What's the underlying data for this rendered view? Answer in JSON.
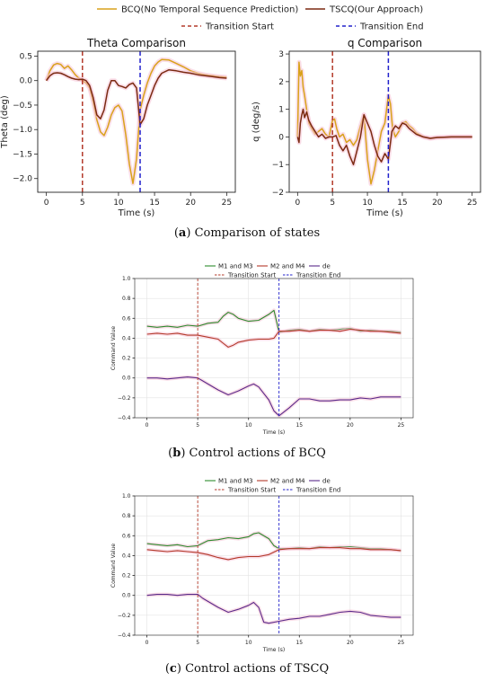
{
  "legend_top": [
    {
      "label": "BCQ(No Temporal Sequence Prediction)",
      "color": "#d9a21b",
      "dash": false
    },
    {
      "label": "TSCQ(Our Approach)",
      "color": "#7b2a12",
      "dash": false
    },
    {
      "label": "Transition Start",
      "color": "#b33a2a",
      "dash": true
    },
    {
      "label": "Transition End",
      "color": "#2222cc",
      "dash": true
    }
  ],
  "captions": {
    "a": {
      "letter": "a",
      "text": "Comparison of states"
    },
    "b": {
      "letter": "b",
      "text": "Control actions of BCQ"
    },
    "c": {
      "letter": "c",
      "text": "Control actions of TSCQ"
    }
  },
  "chart_data": [
    {
      "id": "theta",
      "type": "line",
      "title": "Theta Comparison",
      "xlabel": "Time (s)",
      "ylabel": "Theta (deg)",
      "xlim": [
        -1.2,
        26.2
      ],
      "ylim": [
        -2.28,
        0.6
      ],
      "xticks": [
        0,
        5,
        10,
        15,
        20,
        25
      ],
      "yticks": [
        0.5,
        0.0,
        -0.5,
        -1.0,
        -1.5,
        -2.0
      ],
      "ytick_labels": [
        "0.5",
        "0.0",
        "−0.5",
        "−1.0",
        "−1.5",
        "−2.0"
      ],
      "grid": false,
      "vlines": [
        {
          "x": 5,
          "color": "#b33a2a"
        },
        {
          "x": 13,
          "color": "#2222cc"
        }
      ],
      "series": [
        {
          "name": "BCQ(No Temporal Sequence Prediction)",
          "color": "#d9a21b",
          "x": [
            0,
            0.5,
            1,
            1.5,
            2,
            2.5,
            3,
            3.5,
            4,
            4.5,
            5,
            5.5,
            6,
            6.5,
            7,
            7.5,
            8,
            8.5,
            9,
            9.5,
            10,
            10.5,
            11,
            11.5,
            12,
            12.5,
            13,
            13.5,
            14,
            14.5,
            15,
            15.5,
            16,
            17,
            18,
            19,
            20,
            21,
            22,
            23,
            24,
            25
          ],
          "y": [
            0.0,
            0.2,
            0.32,
            0.35,
            0.33,
            0.25,
            0.3,
            0.22,
            0.12,
            0.05,
            0.0,
            -0.05,
            -0.15,
            -0.45,
            -0.8,
            -1.05,
            -1.12,
            -0.95,
            -0.7,
            -0.55,
            -0.5,
            -0.62,
            -1.1,
            -1.7,
            -2.1,
            -1.6,
            -0.6,
            -0.3,
            -0.05,
            0.15,
            0.3,
            0.38,
            0.43,
            0.42,
            0.35,
            0.28,
            0.2,
            0.15,
            0.12,
            0.1,
            0.08,
            0.07
          ]
        },
        {
          "name": "TSCQ(Our Approach)",
          "color": "#7b2a12",
          "x": [
            0,
            0.5,
            1,
            1.5,
            2,
            2.5,
            3,
            3.5,
            4,
            4.5,
            5,
            5.5,
            6,
            6.5,
            7,
            7.5,
            8,
            8.5,
            9,
            9.5,
            10,
            10.5,
            11,
            11.5,
            12,
            12.5,
            13,
            13.5,
            14,
            14.5,
            15,
            15.5,
            16,
            17,
            18,
            19,
            20,
            21,
            22,
            23,
            24,
            25
          ],
          "y": [
            0.0,
            0.1,
            0.15,
            0.16,
            0.15,
            0.12,
            0.08,
            0.05,
            0.03,
            0.02,
            0.03,
            0.0,
            -0.1,
            -0.35,
            -0.7,
            -0.78,
            -0.6,
            -0.2,
            0.0,
            0.0,
            -0.1,
            -0.12,
            -0.15,
            -0.08,
            -0.05,
            -0.15,
            -0.9,
            -0.78,
            -0.5,
            -0.3,
            -0.1,
            0.05,
            0.15,
            0.22,
            0.2,
            0.17,
            0.15,
            0.12,
            0.1,
            0.08,
            0.06,
            0.05
          ]
        }
      ]
    },
    {
      "id": "q",
      "type": "line",
      "title": "q Comparison",
      "xlabel": "Time (s)",
      "ylabel": "q (deg/s)",
      "xlim": [
        -1.2,
        26.2
      ],
      "ylim": [
        -2.0,
        3.1
      ],
      "xticks": [
        0,
        5,
        10,
        15,
        20,
        25
      ],
      "yticks": [
        3,
        2,
        1,
        0,
        -1,
        -2
      ],
      "ytick_labels": [
        "3",
        "2",
        "1",
        "0",
        "−1",
        "−2"
      ],
      "grid": false,
      "vlines": [
        {
          "x": 5,
          "color": "#b33a2a"
        },
        {
          "x": 13,
          "color": "#2222cc"
        }
      ],
      "series": [
        {
          "name": "BCQ(No Temporal Sequence Prediction)",
          "color": "#d9a21b",
          "x": [
            0,
            0.2,
            0.4,
            0.6,
            0.8,
            1,
            1.3,
            1.6,
            2,
            2.5,
            3,
            3.5,
            4,
            4.5,
            5,
            5.3,
            5.6,
            6,
            6.5,
            7,
            7.5,
            8,
            8.5,
            9,
            9.5,
            10,
            10.5,
            11,
            11.5,
            12,
            12.5,
            13,
            13.3,
            13.6,
            14,
            14.5,
            15,
            15.5,
            16,
            16.5,
            17,
            18,
            19,
            20,
            21,
            22,
            23,
            24,
            25
          ],
          "y": [
            0.0,
            2.7,
            2.2,
            2.4,
            1.8,
            1.5,
            1.0,
            0.5,
            0.3,
            0.1,
            0.2,
            0.3,
            0.1,
            0.0,
            0.6,
            0.65,
            0.3,
            0.0,
            0.1,
            -0.2,
            -0.1,
            -0.3,
            -0.1,
            0.4,
            0.8,
            -0.8,
            -1.7,
            -1.2,
            -0.5,
            0.2,
            0.5,
            1.5,
            1.2,
            0.3,
            0.0,
            0.2,
            0.5,
            0.55,
            0.4,
            0.3,
            0.15,
            0.0,
            -0.05,
            -0.02,
            -0.01,
            0.0,
            0.0,
            0.0,
            0.0
          ]
        },
        {
          "name": "TSCQ(Our Approach)",
          "color": "#7b2a12",
          "x": [
            0,
            0.2,
            0.4,
            0.6,
            0.8,
            1,
            1.3,
            1.6,
            2,
            2.5,
            3,
            3.5,
            4,
            4.5,
            5,
            5.5,
            6,
            6.5,
            7,
            7.5,
            8,
            8.5,
            9,
            9.5,
            10,
            10.5,
            11,
            11.5,
            12,
            12.5,
            13,
            13.5,
            14,
            14.5,
            15,
            15.5,
            16,
            16.5,
            17,
            18,
            19,
            20,
            21,
            22,
            23,
            24,
            25
          ],
          "y": [
            0.0,
            -0.2,
            0.5,
            0.8,
            1.0,
            0.7,
            0.9,
            0.6,
            0.4,
            0.2,
            0.0,
            0.1,
            -0.05,
            0.0,
            0.0,
            0.05,
            -0.3,
            -0.5,
            -0.3,
            -0.7,
            -1.0,
            -0.5,
            0.0,
            0.8,
            0.5,
            0.2,
            -0.3,
            -0.7,
            -0.9,
            -0.6,
            -0.8,
            0.2,
            0.4,
            0.3,
            0.5,
            0.45,
            0.3,
            0.2,
            0.1,
            0.0,
            -0.05,
            -0.02,
            -0.01,
            0.0,
            0.0,
            0.0,
            0.0
          ]
        }
      ]
    },
    {
      "id": "bcq",
      "type": "line",
      "title": "",
      "xlabel": "Time (s)",
      "ylabel": "Command Value",
      "xlim": [
        -1.2,
        26.2
      ],
      "ylim": [
        -0.4,
        1.0
      ],
      "xticks": [
        0,
        5,
        10,
        15,
        20,
        25
      ],
      "yticks": [
        1.0,
        0.8,
        0.6,
        0.4,
        0.2,
        0.0,
        -0.2,
        -0.4
      ],
      "ytick_labels": [
        "1.0",
        "0.8",
        "0.6",
        "0.4",
        "0.2",
        "0.0",
        "−0.2",
        "−0.4"
      ],
      "grid": true,
      "vlines": [
        {
          "x": 5,
          "color": "#b33a2a"
        },
        {
          "x": 13,
          "color": "#2222cc"
        }
      ],
      "legend": [
        {
          "label": "M1 and M3",
          "color": "#2e8b2e",
          "dash": false
        },
        {
          "label": "M2 and M4",
          "color": "#b33a2a",
          "dash": false
        },
        {
          "label": "de",
          "color": "#5a2a8a",
          "dash": false
        },
        {
          "label": "Transition Start",
          "color": "#b33a2a",
          "dash": true
        },
        {
          "label": "Transition End",
          "color": "#2222cc",
          "dash": true
        }
      ],
      "series": [
        {
          "name": "M1 and M3",
          "color": "#2e8b2e",
          "x": [
            0,
            1,
            2,
            3,
            4,
            5,
            6,
            7,
            7.5,
            8,
            8.5,
            9,
            10,
            11,
            12,
            12.5,
            13,
            14,
            15,
            16,
            17,
            18,
            19,
            20,
            21,
            22,
            23,
            24,
            25
          ],
          "y": [
            0.52,
            0.51,
            0.52,
            0.51,
            0.53,
            0.52,
            0.55,
            0.56,
            0.62,
            0.66,
            0.64,
            0.6,
            0.57,
            0.58,
            0.64,
            0.68,
            0.46,
            0.48,
            0.49,
            0.47,
            0.49,
            0.48,
            0.49,
            0.5,
            0.47,
            0.48,
            0.47,
            0.47,
            0.46
          ]
        },
        {
          "name": "M2 and M4",
          "color": "#b33a2a",
          "x": [
            0,
            1,
            2,
            3,
            4,
            5,
            6,
            7,
            7.5,
            8,
            8.5,
            9,
            10,
            11,
            12,
            12.5,
            13,
            14,
            15,
            16,
            17,
            18,
            19,
            20,
            21,
            22,
            23,
            24,
            25
          ],
          "y": [
            0.44,
            0.45,
            0.44,
            0.45,
            0.43,
            0.43,
            0.41,
            0.39,
            0.35,
            0.31,
            0.33,
            0.36,
            0.38,
            0.39,
            0.39,
            0.4,
            0.47,
            0.47,
            0.48,
            0.47,
            0.48,
            0.48,
            0.47,
            0.49,
            0.48,
            0.47,
            0.47,
            0.46,
            0.45
          ]
        },
        {
          "name": "de",
          "color": "#5a2a8a",
          "x": [
            0,
            1,
            2,
            3,
            4,
            5,
            5.5,
            6,
            7,
            8,
            9,
            10,
            10.5,
            11,
            12,
            12.5,
            13,
            14,
            15,
            16,
            17,
            18,
            19,
            20,
            21,
            22,
            23,
            24,
            25
          ],
          "y": [
            0.0,
            0.0,
            -0.01,
            0.0,
            0.01,
            0.0,
            -0.03,
            -0.06,
            -0.12,
            -0.17,
            -0.13,
            -0.08,
            -0.06,
            -0.09,
            -0.22,
            -0.33,
            -0.38,
            -0.3,
            -0.21,
            -0.21,
            -0.23,
            -0.23,
            -0.22,
            -0.22,
            -0.2,
            -0.21,
            -0.19,
            -0.19,
            -0.19
          ]
        }
      ]
    },
    {
      "id": "tscq",
      "type": "line",
      "title": "",
      "xlabel": "Time (s)",
      "ylabel": "Command Value",
      "xlim": [
        -1.2,
        26.2
      ],
      "ylim": [
        -0.4,
        1.0
      ],
      "xticks": [
        0,
        5,
        10,
        15,
        20,
        25
      ],
      "yticks": [
        1.0,
        0.8,
        0.6,
        0.4,
        0.2,
        0.0,
        -0.2,
        -0.4
      ],
      "ytick_labels": [
        "1.0",
        "0.8",
        "0.6",
        "0.4",
        "0.2",
        "0.0",
        "−0.2",
        "−0.4"
      ],
      "grid": true,
      "vlines": [
        {
          "x": 5,
          "color": "#b33a2a"
        },
        {
          "x": 13,
          "color": "#2222cc"
        }
      ],
      "legend": [
        {
          "label": "M1 and M3",
          "color": "#2e8b2e",
          "dash": false
        },
        {
          "label": "M2 and M4",
          "color": "#b33a2a",
          "dash": false
        },
        {
          "label": "de",
          "color": "#5a2a8a",
          "dash": false
        },
        {
          "label": "Transition Start",
          "color": "#b33a2a",
          "dash": true
        },
        {
          "label": "Transition End",
          "color": "#2222cc",
          "dash": true
        }
      ],
      "series": [
        {
          "name": "M1 and M3",
          "color": "#2e8b2e",
          "x": [
            0,
            1,
            2,
            3,
            4,
            5,
            6,
            7,
            8,
            9,
            10,
            10.5,
            11,
            12,
            12.5,
            13,
            14,
            15,
            16,
            17,
            18,
            19,
            20,
            21,
            22,
            23,
            24,
            25
          ],
          "y": [
            0.52,
            0.51,
            0.5,
            0.51,
            0.49,
            0.5,
            0.55,
            0.56,
            0.58,
            0.57,
            0.59,
            0.62,
            0.63,
            0.57,
            0.5,
            0.47,
            0.47,
            0.48,
            0.47,
            0.49,
            0.48,
            0.49,
            0.49,
            0.48,
            0.47,
            0.47,
            0.46,
            0.45
          ]
        },
        {
          "name": "M2 and M4",
          "color": "#b33a2a",
          "x": [
            0,
            1,
            2,
            3,
            4,
            5,
            6,
            7,
            8,
            9,
            10,
            11,
            12,
            13,
            14,
            15,
            16,
            17,
            18,
            19,
            20,
            21,
            22,
            23,
            24,
            25
          ],
          "y": [
            0.46,
            0.45,
            0.44,
            0.45,
            0.44,
            0.43,
            0.41,
            0.38,
            0.36,
            0.38,
            0.39,
            0.39,
            0.41,
            0.46,
            0.47,
            0.47,
            0.47,
            0.48,
            0.48,
            0.48,
            0.47,
            0.47,
            0.46,
            0.46,
            0.46,
            0.45
          ]
        },
        {
          "name": "de",
          "color": "#5a2a8a",
          "x": [
            0,
            1,
            2,
            3,
            4,
            5,
            5.5,
            6,
            7,
            8,
            9,
            10,
            10.5,
            11,
            11.5,
            12,
            13,
            14,
            15,
            16,
            17,
            18,
            19,
            20,
            21,
            22,
            23,
            24,
            25
          ],
          "y": [
            0.0,
            0.01,
            0.01,
            0.0,
            0.01,
            0.01,
            -0.03,
            -0.06,
            -0.12,
            -0.17,
            -0.14,
            -0.1,
            -0.07,
            -0.12,
            -0.27,
            -0.28,
            -0.26,
            -0.24,
            -0.23,
            -0.21,
            -0.21,
            -0.19,
            -0.17,
            -0.16,
            -0.17,
            -0.2,
            -0.21,
            -0.22,
            -0.22
          ]
        }
      ]
    }
  ]
}
